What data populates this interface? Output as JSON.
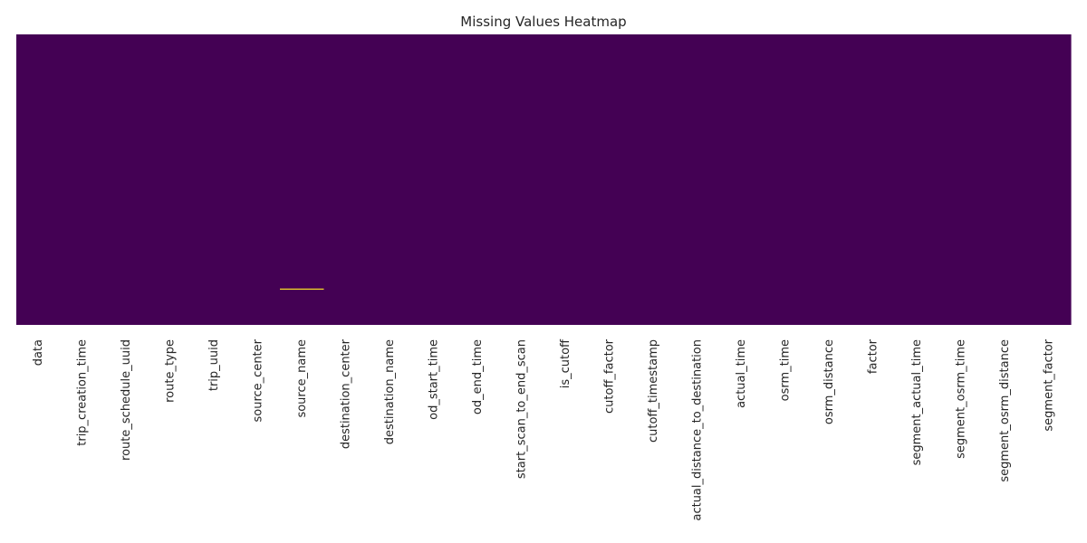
{
  "chart_data": {
    "type": "heatmap",
    "title": "Missing Values Heatmap",
    "xlabel": "",
    "ylabel": "",
    "columns": [
      "data",
      "trip_creation_time",
      "route_schedule_uuid",
      "route_type",
      "trip_uuid",
      "source_center",
      "source_name",
      "destination_center",
      "destination_name",
      "od_start_time",
      "od_end_time",
      "start_scan_to_end_scan",
      "is_cutoff",
      "cutoff_factor",
      "cutoff_timestamp",
      "actual_distance_to_destination",
      "actual_time",
      "osrm_time",
      "osrm_distance",
      "factor",
      "segment_actual_time",
      "segment_osrm_time",
      "segment_osrm_distance",
      "segment_factor"
    ],
    "missing": [
      {
        "column": "source_name",
        "row_fraction": 0.875
      }
    ],
    "colors": {
      "present": "#440154",
      "missing": "#fde725"
    },
    "colorbar": false,
    "y_ticks": false
  }
}
